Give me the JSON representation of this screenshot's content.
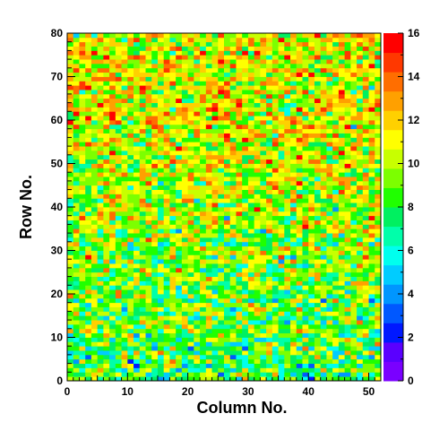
{
  "chart_data": {
    "type": "heatmap",
    "xlabel": "Column No.",
    "ylabel": "Row No.",
    "xlim": [
      0,
      52
    ],
    "ylim": [
      0,
      80
    ],
    "zlim": [
      0,
      16
    ],
    "n_columns": 52,
    "n_rows": 80,
    "x_ticks": [
      "0",
      "10",
      "20",
      "30",
      "40",
      "50"
    ],
    "y_ticks": [
      "0",
      "10",
      "20",
      "30",
      "40",
      "50",
      "60",
      "70",
      "80"
    ],
    "z_ticks": [
      "0",
      "2",
      "4",
      "6",
      "8",
      "10",
      "12",
      "14",
      "16"
    ],
    "palette": [
      "#7a00ff",
      "#5a00ff",
      "#0018ff",
      "#0058ff",
      "#0096ff",
      "#00ccff",
      "#00ffee",
      "#00ffaa",
      "#00f060",
      "#20ff00",
      "#7cff00",
      "#c8ff00",
      "#ffff00",
      "#ffd000",
      "#ffa000",
      "#ff6e00",
      "#ff3800",
      "#ff0000"
    ],
    "typical_value_by_row": [
      {
        "row": 0,
        "value": 8
      },
      {
        "row": 20,
        "value": 9
      },
      {
        "row": 40,
        "value": 10
      },
      {
        "row": 60,
        "value": 11
      },
      {
        "row": 80,
        "value": 11
      }
    ],
    "value_spread": 2.2,
    "grid": false,
    "legend": "color-scale right"
  }
}
